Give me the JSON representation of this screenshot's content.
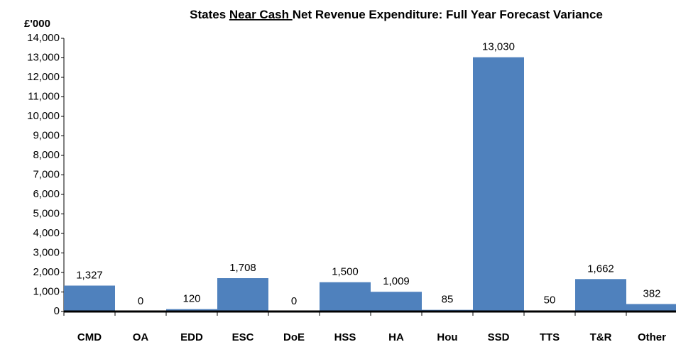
{
  "chart_data": {
    "type": "bar",
    "title": [
      {
        "text": "States "
      },
      {
        "text": "Near Cash ",
        "underline": true
      },
      {
        "text": "Net Revenue Expenditure: Full Year Forecast Variance"
      }
    ],
    "y_label": "£'000",
    "categories": [
      "CMD",
      "OA",
      "EDD",
      "ESC",
      "DoE",
      "HSS",
      "HA",
      "Hou",
      "SSD",
      "TTS",
      "T&R",
      "Other"
    ],
    "values": [
      1327,
      0,
      120,
      1708,
      0,
      1500,
      1009,
      85,
      13030,
      50,
      1662,
      382
    ],
    "value_labels": [
      "1,327",
      "0",
      "120",
      "1,708",
      "0",
      "1,500",
      "1,009",
      "85",
      "13,030",
      "50",
      "1,662",
      "382"
    ],
    "color": "#4f81bd",
    "ylim": [
      0,
      14000
    ],
    "yticks": [
      0,
      {
        "value": 1000,
        "label": "1,000"
      },
      {
        "value": 2000,
        "label": "2,000"
      },
      {
        "value": 3000,
        "label": "3,000"
      },
      {
        "value": 4000,
        "label": "4,000"
      },
      {
        "value": 5000,
        "label": "5,000"
      },
      {
        "value": 6000,
        "label": "6,000"
      },
      {
        "value": 7000,
        "label": "7,000"
      },
      {
        "value": 8000,
        "label": "8,000"
      },
      {
        "value": 9000,
        "label": "9,000"
      },
      {
        "value": 10000,
        "label": "10,000"
      },
      {
        "value": 11000,
        "label": "11,000"
      },
      {
        "value": 12000,
        "label": "12,000"
      },
      {
        "value": 13000,
        "label": "13,000"
      },
      {
        "value": 14000,
        "label": "14,000"
      }
    ],
    "grid": false
  }
}
